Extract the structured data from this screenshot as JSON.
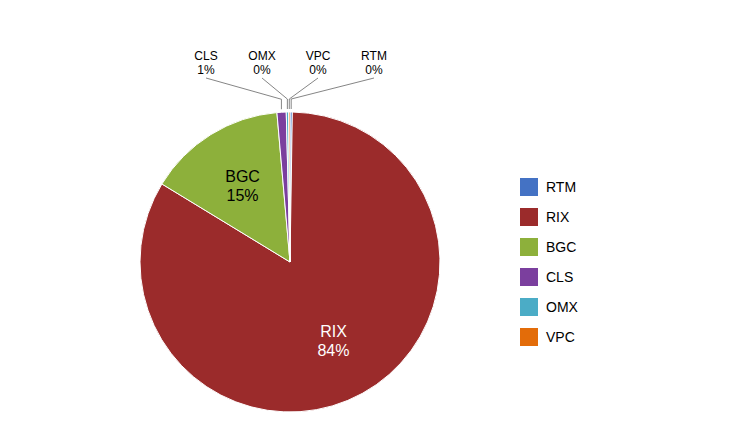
{
  "chart_data": {
    "type": "pie",
    "categories": [
      "RTM",
      "RIX",
      "BGC",
      "CLS",
      "OMX",
      "VPC"
    ],
    "values": [
      0.25,
      84,
      15,
      1,
      0.25,
      0.15
    ],
    "value_labels": [
      "0%",
      "84%",
      "15%",
      "1%",
      "0%",
      "0%"
    ],
    "colors": [
      "#4472C4",
      "#9B2B2B",
      "#8DB03B",
      "#7B3F9E",
      "#4BACC6",
      "#E36C09"
    ],
    "data_labels": true,
    "legend": "right"
  }
}
